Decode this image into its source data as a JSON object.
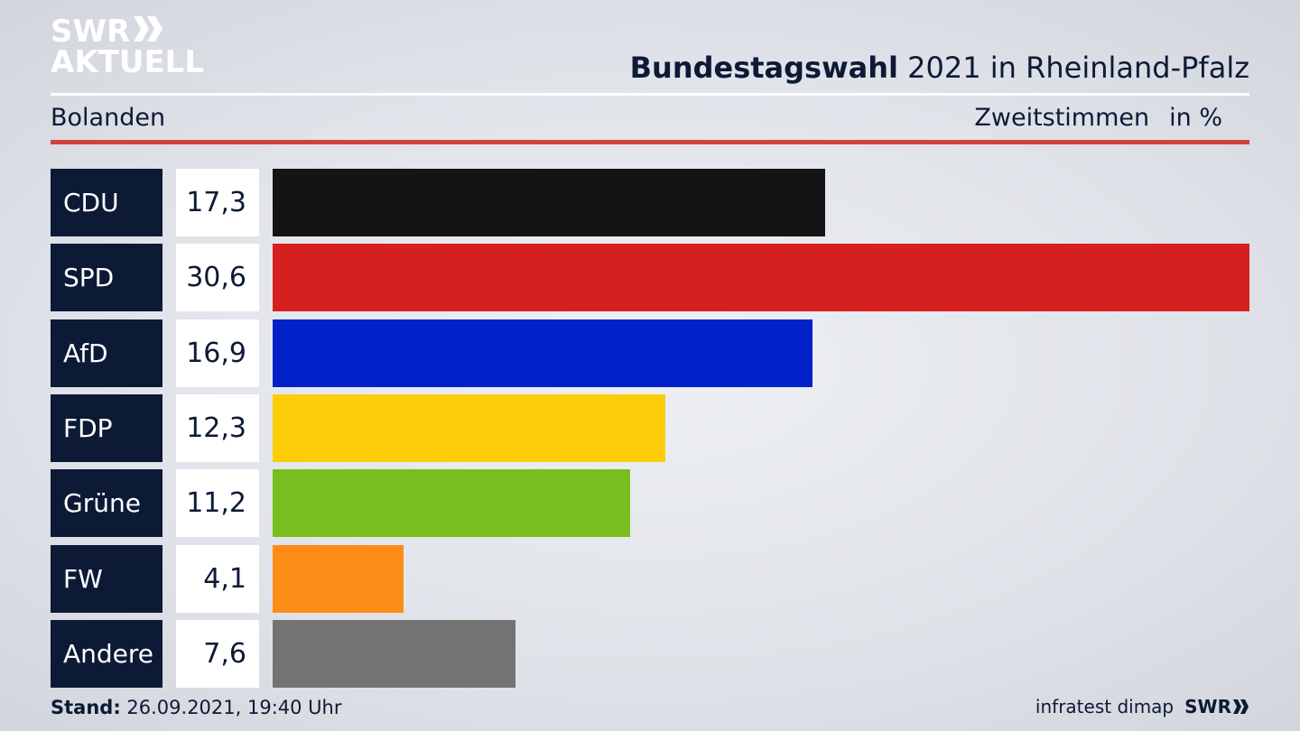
{
  "logo": {
    "line1": "SWR",
    "line2": "AKTUELL"
  },
  "header": {
    "title_bold": "Bundestagswahl",
    "title_rest": " 2021 in Rheinland-Pfalz",
    "region": "Bolanden",
    "vote_type": "Zweitstimmen",
    "unit": "in %"
  },
  "chart_data": {
    "type": "bar",
    "orientation": "horizontal",
    "categories": [
      "CDU",
      "SPD",
      "AfD",
      "FDP",
      "Grüne",
      "FW",
      "Andere"
    ],
    "values": [
      17.3,
      30.6,
      16.9,
      12.3,
      11.2,
      4.1,
      7.6
    ],
    "value_labels": [
      "17,3",
      "30,6",
      "16,9",
      "12,3",
      "11,2",
      "4,1",
      "7,6"
    ],
    "colors": [
      "#141414",
      "#d62020",
      "#0022c8",
      "#fdcd0a",
      "#78be1e",
      "#fd8c17",
      "#737373"
    ],
    "xlim": [
      0,
      30.6
    ]
  },
  "footer": {
    "stand_label": "Stand:",
    "stand_value": " 26.09.2021, 19:40 Uhr",
    "source": "infratest dimap",
    "brand": "SWR"
  }
}
